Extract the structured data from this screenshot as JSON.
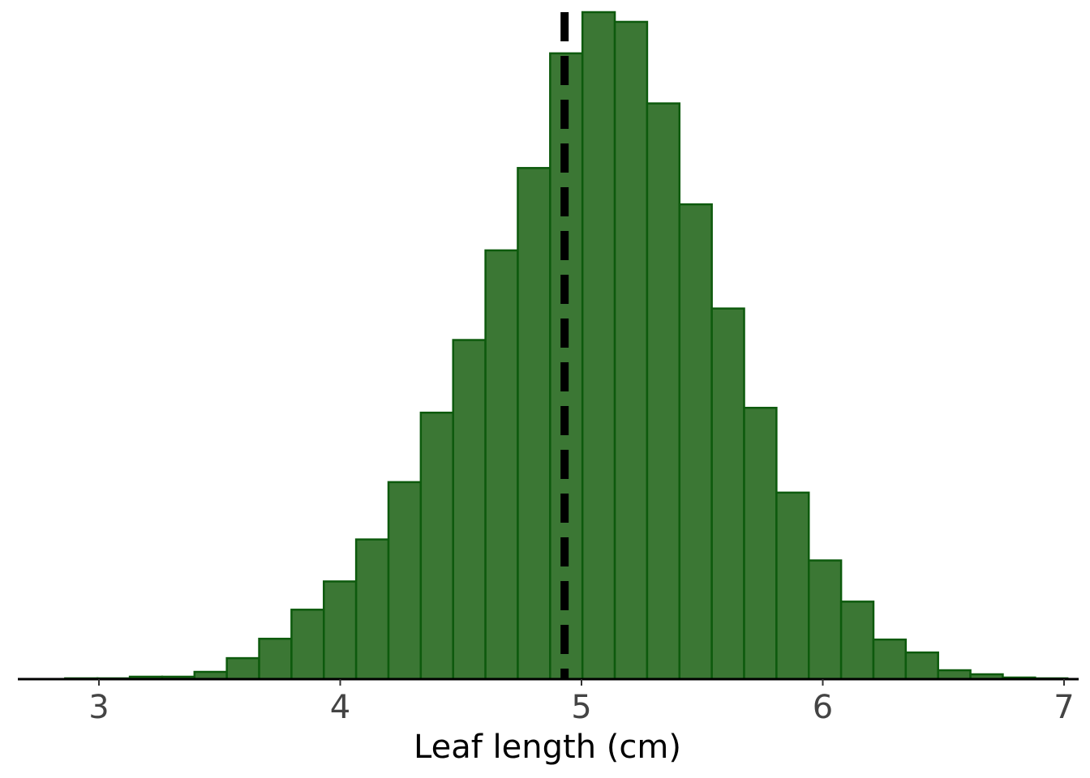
{
  "chart_data": {
    "type": "histogram",
    "xlabel": "Leaf length (cm)",
    "ylabel": "",
    "title": "",
    "xlim": [
      2.67,
      7.02
    ],
    "bin_width": 0.134,
    "bin_start": 2.86,
    "counts": [
      1,
      1,
      3,
      3,
      9,
      26,
      50,
      86,
      121,
      173,
      244,
      330,
      420,
      531,
      633,
      775,
      826,
      814,
      713,
      588,
      459,
      336,
      231,
      147,
      96,
      49,
      33,
      11,
      6,
      2,
      1
    ],
    "ylim": [
      0,
      826
    ],
    "mean_line": {
      "x": 4.93,
      "style": "dashed",
      "color": "#000000"
    },
    "bar_fill": "#3b7734",
    "bar_edge": "#0d5a0d",
    "x_ticks": [
      "3",
      "4",
      "5",
      "6",
      "7"
    ],
    "x_tick_values": [
      3,
      4,
      5,
      6,
      7
    ],
    "grid": false,
    "y_axis_visible": false
  }
}
